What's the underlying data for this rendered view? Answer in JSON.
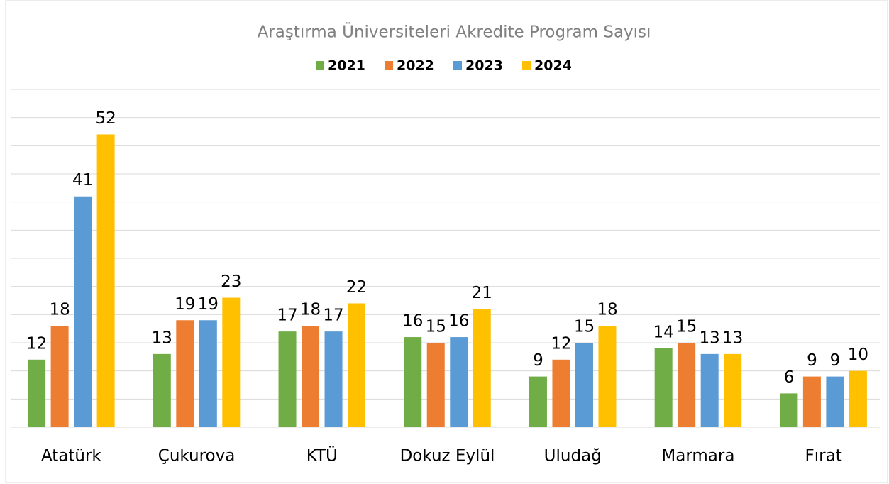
{
  "chart_data": {
    "type": "bar",
    "title": "Araştırma Üniversiteleri Akredite Program Sayısı",
    "categories": [
      "Atatürk",
      "Çukurova",
      "KTÜ",
      "Dokuz  Eylül",
      "Uludağ",
      "Marmara",
      "Fırat"
    ],
    "series": [
      {
        "name": "2021",
        "color": "#70ad47",
        "values": [
          12,
          13,
          17,
          16,
          9,
          14,
          6
        ]
      },
      {
        "name": "2022",
        "color": "#ed7d31",
        "values": [
          18,
          19,
          18,
          15,
          12,
          15,
          9
        ]
      },
      {
        "name": "2023",
        "color": "#5b9bd5",
        "values": [
          41,
          19,
          17,
          16,
          15,
          13,
          9
        ]
      },
      {
        "name": "2024",
        "color": "#ffc000",
        "values": [
          52,
          23,
          22,
          21,
          18,
          13,
          10
        ]
      }
    ],
    "ylim": [
      0,
      60
    ],
    "yticks": [
      0,
      5,
      10,
      15,
      20,
      25,
      30,
      35,
      40,
      45,
      50,
      55,
      60
    ],
    "grid": true,
    "legend": "top"
  }
}
